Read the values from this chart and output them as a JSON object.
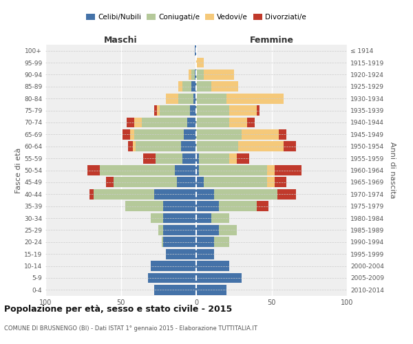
{
  "age_groups": [
    "100+",
    "95-99",
    "90-94",
    "85-89",
    "80-84",
    "75-79",
    "70-74",
    "65-69",
    "60-64",
    "55-59",
    "50-54",
    "45-49",
    "40-44",
    "35-39",
    "30-34",
    "25-29",
    "20-24",
    "15-19",
    "10-14",
    "5-9",
    "0-4"
  ],
  "birth_years": [
    "≤ 1914",
    "1915-1919",
    "1920-1924",
    "1925-1929",
    "1930-1934",
    "1935-1939",
    "1940-1944",
    "1945-1949",
    "1950-1954",
    "1955-1959",
    "1960-1964",
    "1965-1969",
    "1970-1974",
    "1975-1979",
    "1980-1984",
    "1985-1989",
    "1990-1994",
    "1995-1999",
    "2000-2004",
    "2005-2009",
    "2010-2014"
  ],
  "colors": {
    "celibi": "#4472a8",
    "coniugati": "#b5c99a",
    "vedovi": "#f5c97a",
    "divorziati": "#c0392b"
  },
  "maschi": {
    "celibi": [
      1,
      0,
      1,
      3,
      2,
      4,
      6,
      8,
      10,
      9,
      14,
      13,
      28,
      22,
      22,
      22,
      22,
      20,
      30,
      32,
      28
    ],
    "coniugati": [
      0,
      0,
      2,
      6,
      10,
      20,
      30,
      33,
      30,
      18,
      50,
      42,
      40,
      25,
      8,
      3,
      1,
      0,
      0,
      0,
      0
    ],
    "vedovi": [
      0,
      0,
      2,
      3,
      8,
      2,
      5,
      3,
      2,
      0,
      0,
      0,
      0,
      0,
      0,
      0,
      0,
      0,
      0,
      0,
      0
    ],
    "divorziati": [
      0,
      0,
      0,
      0,
      0,
      2,
      5,
      5,
      3,
      8,
      8,
      5,
      3,
      0,
      0,
      0,
      0,
      0,
      0,
      0,
      0
    ]
  },
  "femmine": {
    "celibi": [
      0,
      0,
      0,
      0,
      0,
      0,
      0,
      0,
      0,
      2,
      2,
      5,
      12,
      15,
      10,
      15,
      12,
      12,
      22,
      30,
      20
    ],
    "coniugati": [
      0,
      0,
      5,
      10,
      20,
      22,
      22,
      30,
      28,
      20,
      45,
      42,
      42,
      25,
      12,
      12,
      10,
      0,
      0,
      0,
      0
    ],
    "vedovi": [
      0,
      5,
      20,
      18,
      38,
      18,
      12,
      25,
      30,
      5,
      5,
      5,
      0,
      0,
      0,
      0,
      0,
      0,
      0,
      0,
      0
    ],
    "divorziati": [
      0,
      0,
      0,
      0,
      0,
      2,
      5,
      5,
      8,
      8,
      18,
      8,
      12,
      8,
      0,
      0,
      0,
      0,
      0,
      0,
      0
    ]
  },
  "title": "Popolazione per età, sesso e stato civile - 2015",
  "subtitle": "COMUNE DI BRUSNENGO (BI) - Dati ISTAT 1° gennaio 2015 - Elaborazione TUTTITALIA.IT",
  "xlabel_left": "Maschi",
  "xlabel_right": "Femmine",
  "ylabel_left": "Fasce di età",
  "ylabel_right": "Anni di nascita",
  "xlim": 100,
  "legend_labels": [
    "Celibi/Nubili",
    "Coniugati/e",
    "Vedovi/e",
    "Divorziati/e"
  ],
  "background_color": "#ffffff",
  "plot_bg": "#efefef",
  "bar_height": 0.85
}
